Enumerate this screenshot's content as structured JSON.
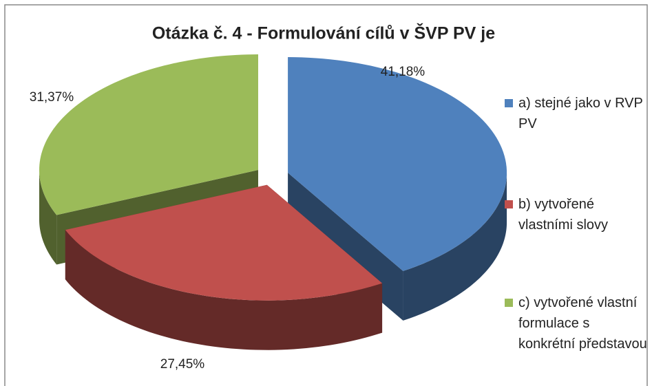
{
  "chart_data": {
    "type": "pie3d",
    "title": "Otázka č. 4 - Formulování cílů v ŠVP PV je",
    "categories": [
      "a) stejné jako v RVP PV",
      "b) vytvořené vlastními slovy",
      "c) vytvořené vlastní formulace s konkrétní představou"
    ],
    "values": [
      41.18,
      27.45,
      31.37
    ],
    "value_labels": [
      "41,18%",
      "27,45%",
      "31,37%"
    ],
    "colors": [
      "#4f81bd",
      "#c0504d",
      "#9bbb59"
    ],
    "legend": "right"
  }
}
